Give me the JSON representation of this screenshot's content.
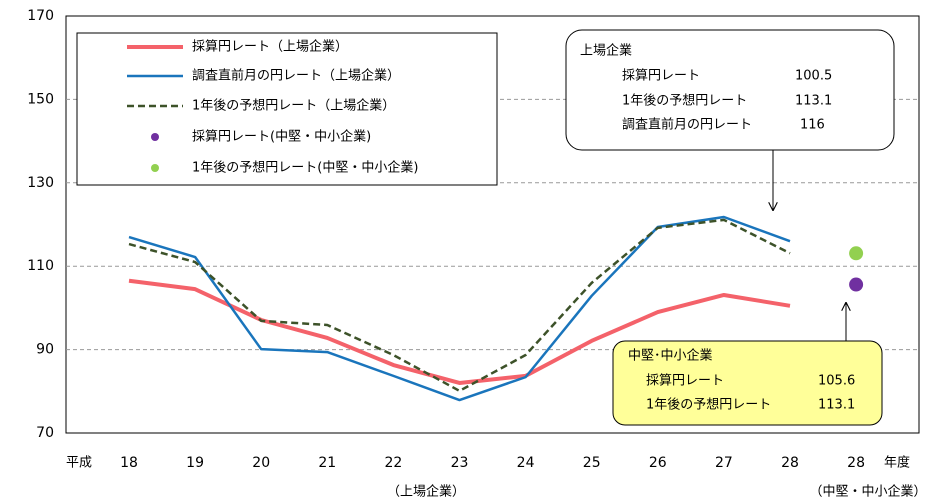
{
  "chart_data": {
    "type": "line",
    "categories": [
      "18",
      "19",
      "20",
      "21",
      "22",
      "23",
      "24",
      "25",
      "26",
      "27",
      "28",
      "28"
    ],
    "x_prefix": "平成",
    "x_suffix": "年度",
    "group_labels": [
      "（上場企業）",
      "（中堅・中小企業）"
    ],
    "ylim": [
      70,
      170
    ],
    "yticks": [
      70,
      90,
      110,
      130,
      150,
      170
    ],
    "grid": true,
    "series": [
      {
        "name": "採算円レート（上場企業）",
        "color": "#f4626a",
        "style": "solid",
        "values": [
          106.5,
          104.5,
          97.1,
          92.8,
          86.3,
          82.0,
          83.7,
          92.1,
          99.0,
          103.1,
          100.5,
          null
        ]
      },
      {
        "name": "調査直前月の円レート（上場企業）",
        "color": "#1a75bc",
        "style": "solid",
        "values": [
          117.0,
          112.2,
          90.1,
          89.4,
          83.7,
          77.9,
          83.4,
          102.9,
          119.4,
          121.8,
          116.0,
          null
        ]
      },
      {
        "name": "1年後の予想円レート（上場企業）",
        "color": "#3d5229",
        "style": "dashed",
        "values": [
          115.3,
          111.0,
          96.9,
          95.9,
          88.7,
          80.1,
          88.7,
          106.0,
          119.2,
          121.1,
          113.1,
          null
        ]
      },
      {
        "name": "採算円レート(中堅・中小企業)",
        "color": "#7030a0",
        "style": "dot",
        "values": [
          null,
          null,
          null,
          null,
          null,
          null,
          null,
          null,
          null,
          null,
          null,
          105.6
        ]
      },
      {
        "name": "1年後の予想円レート(中堅・中小企業)",
        "color": "#92d050",
        "style": "dot",
        "values": [
          null,
          null,
          null,
          null,
          null,
          null,
          null,
          null,
          null,
          null,
          null,
          113.1
        ]
      }
    ],
    "annotations": [
      {
        "title": "上場企業",
        "labels": [
          "採算円レート",
          "1年後の予想円レート",
          "調査直前月の円レート"
        ]
      },
      {
        "title": "中堅･中小企業",
        "labels": [
          "採算円レート",
          "1年後の予想円レート"
        ]
      }
    ]
  }
}
